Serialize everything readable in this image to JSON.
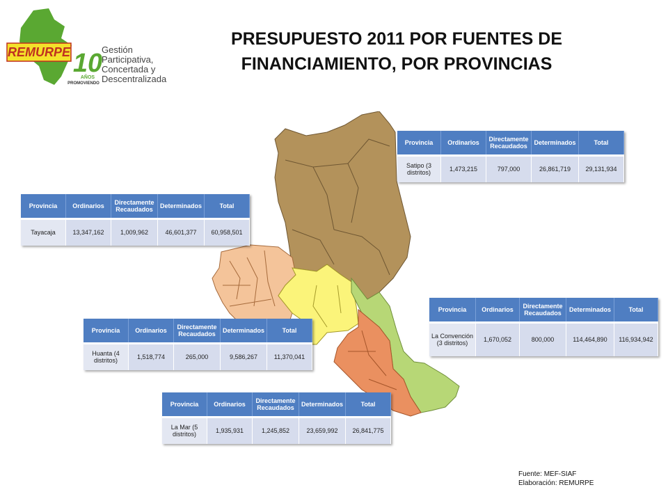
{
  "title": {
    "line1": "PRESUPUESTO 2011 POR FUENTES DE",
    "line2": "FINANCIAMIENTO, POR PROVINCIAS"
  },
  "logo": {
    "brand": "REMURPE",
    "years": "10",
    "years_word": "AÑOS",
    "promo": "PROMOVIENDO",
    "tag1": "Gestión",
    "tag2": "Participativa,",
    "tag3": "Concertada y",
    "tag4": "Descentralizada"
  },
  "table_headers": [
    "Provincia",
    "Ordinarios",
    "Directamente Recaudados",
    "Determinados",
    "Total"
  ],
  "tables": {
    "satipo": {
      "provincia": "Satipo (3 distritos)",
      "ordinarios": "1,473,215",
      "recaudados": "797,000",
      "determinados": "26,861,719",
      "total": "29,131,934"
    },
    "tayacaja": {
      "provincia": "Tayacaja",
      "ordinarios": "13,347,162",
      "recaudados": "1,009,962",
      "determinados": "46,601,377",
      "total": "60,958,501"
    },
    "laconvencion": {
      "provincia": "La Convención (3 distritos)",
      "ordinarios": "1,670,052",
      "recaudados": "800,000",
      "determinados": "114,464,890",
      "total": "116,934,942"
    },
    "huanta": {
      "provincia": "Huanta (4 distritos)",
      "ordinarios": "1,518,774",
      "recaudados": "265,000",
      "determinados": "9,586,267",
      "total": "11,370,041"
    },
    "lamar": {
      "provincia": "La Mar (5 distritos)",
      "ordinarios": "1,935,931",
      "recaudados": "1,245,852",
      "determinados": "23,659,992",
      "total": "26,841,775"
    }
  },
  "source": {
    "line1": "Fuente: MEF-SIAF",
    "line2": "Elaboración: REMURPE"
  },
  "colors": {
    "satipo": "#b3925b",
    "tayacaja": "#f4c49a",
    "huanta": "#fbf47a",
    "lamar": "#ea9060",
    "laconvencion": "#b7d776",
    "header": "#4f7ec2",
    "cell": "#d6dced"
  }
}
